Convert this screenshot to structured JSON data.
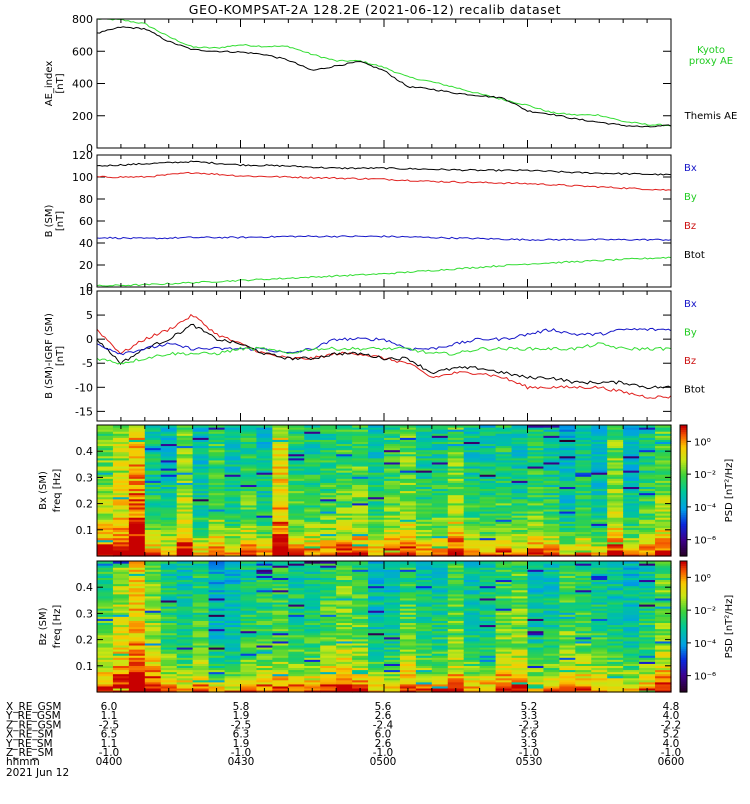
{
  "title": "GEO-KOMPSAT-2A 128.2E (2021-06-12) recalib dataset",
  "colors": {
    "black": "#000000",
    "red": "#e0201e",
    "green": "#33dd33",
    "blue": "#1515c8",
    "legend_blue": "#1515c8",
    "legend_green": "#22cc22",
    "legend_red": "#cc1111"
  },
  "time_axis": {
    "start": "04:00",
    "end": "06:00",
    "tick_labels": [
      "0400",
      "0430",
      "0500",
      "0530",
      "0600"
    ]
  },
  "chart_data": [
    {
      "type": "line",
      "panel": "ae",
      "ylabel": [
        "AE_index",
        "[nT]"
      ],
      "ylim": [
        0,
        800
      ],
      "yticks": [
        0,
        200,
        400,
        600,
        800
      ],
      "series": [
        {
          "name": "Kyoto proxy AE",
          "color": "green",
          "x": [
            "04:00",
            "04:05",
            "04:10",
            "04:15",
            "04:20",
            "04:25",
            "04:30",
            "04:35",
            "04:40",
            "04:45",
            "04:50",
            "04:55",
            "05:00",
            "05:05",
            "05:10",
            "05:15",
            "05:20",
            "05:25",
            "05:30",
            "05:35",
            "05:40",
            "05:45",
            "05:50",
            "05:55",
            "06:00"
          ],
          "values": [
            800,
            795,
            770,
            690,
            625,
            620,
            640,
            630,
            630,
            580,
            540,
            540,
            500,
            440,
            410,
            375,
            335,
            300,
            265,
            220,
            205,
            205,
            165,
            145,
            140
          ]
        },
        {
          "name": "Themis AE",
          "color": "black",
          "x": [
            "04:00",
            "04:05",
            "04:10",
            "04:15",
            "04:20",
            "04:25",
            "04:30",
            "04:35",
            "04:40",
            "04:45",
            "04:50",
            "04:55",
            "05:00",
            "05:05",
            "05:10",
            "05:15",
            "05:20",
            "05:25",
            "05:30",
            "05:35",
            "05:40",
            "05:45",
            "05:50",
            "05:55",
            "06:00"
          ],
          "values": [
            710,
            750,
            740,
            660,
            610,
            600,
            595,
            580,
            545,
            480,
            510,
            535,
            480,
            380,
            365,
            340,
            325,
            310,
            230,
            210,
            180,
            160,
            140,
            130,
            140
          ]
        }
      ],
      "legend": [
        {
          "text": [
            "Kyoto",
            "proxy AE"
          ],
          "color": "legend_green"
        },
        {
          "text": [
            "Themis AE"
          ],
          "color": "black"
        }
      ]
    },
    {
      "type": "line",
      "panel": "bsm",
      "ylabel": [
        "B (SM)",
        "[nT]"
      ],
      "ylim": [
        0,
        120
      ],
      "yticks": [
        0,
        20,
        40,
        60,
        80,
        100,
        120
      ],
      "series": [
        {
          "color": "black",
          "x": [
            "04:00",
            "04:10",
            "04:20",
            "04:30",
            "04:40",
            "04:50",
            "05:00",
            "05:10",
            "05:20",
            "05:30",
            "05:40",
            "05:50",
            "06:00"
          ],
          "values": [
            110,
            112,
            114,
            111,
            110,
            108,
            108,
            107,
            106,
            106,
            104,
            103,
            102
          ]
        },
        {
          "color": "red",
          "x": [
            "04:00",
            "04:10",
            "04:20",
            "04:30",
            "04:40",
            "04:50",
            "05:00",
            "05:10",
            "05:20",
            "05:30",
            "05:40",
            "05:50",
            "06:00"
          ],
          "values": [
            100,
            100,
            104,
            101,
            100,
            99,
            98,
            96,
            95,
            94,
            92,
            90,
            88
          ]
        },
        {
          "color": "blue",
          "x": [
            "04:00",
            "04:10",
            "04:20",
            "04:30",
            "04:40",
            "04:50",
            "05:00",
            "05:10",
            "05:20",
            "05:30",
            "05:40",
            "05:50",
            "06:00"
          ],
          "values": [
            45,
            44,
            45,
            45,
            46,
            46,
            46,
            45,
            44,
            43,
            43,
            43,
            43
          ]
        },
        {
          "color": "green",
          "x": [
            "04:00",
            "04:10",
            "04:20",
            "04:30",
            "04:40",
            "04:50",
            "05:00",
            "05:10",
            "05:20",
            "05:30",
            "05:40",
            "05:50",
            "06:00"
          ],
          "values": [
            1,
            2,
            4,
            6,
            8,
            10,
            12,
            15,
            18,
            21,
            23,
            25,
            27
          ]
        }
      ],
      "legend": [
        {
          "text": [
            "Bx"
          ],
          "color": "legend_blue"
        },
        {
          "text": [
            "By"
          ],
          "color": "legend_green"
        },
        {
          "text": [
            "Bz"
          ],
          "color": "legend_red"
        },
        {
          "text": [
            "Btot"
          ],
          "color": "black"
        }
      ]
    },
    {
      "type": "line",
      "panel": "digrf",
      "ylabel": [
        "B (SM)-IGRF (SM)",
        "[nT]"
      ],
      "ylim": [
        -17,
        10
      ],
      "yticks": [
        -15,
        -10,
        -5,
        0,
        5,
        10
      ],
      "series": [
        {
          "color": "red",
          "x": [
            "04:00",
            "04:05",
            "04:10",
            "04:15",
            "04:20",
            "04:25",
            "04:30",
            "04:35",
            "04:40",
            "04:45",
            "04:50",
            "04:55",
            "05:00",
            "05:05",
            "05:10",
            "05:15",
            "05:20",
            "05:25",
            "05:30",
            "05:35",
            "05:40",
            "05:45",
            "05:50",
            "05:55",
            "06:00"
          ],
          "values": [
            2,
            -3,
            0,
            2,
            5,
            1,
            -1,
            -3,
            -4,
            -4,
            -3,
            -3,
            -4,
            -5,
            -8,
            -7,
            -7,
            -8,
            -10,
            -10,
            -10,
            -10,
            -11,
            -12,
            -12
          ]
        },
        {
          "color": "black",
          "x": [
            "04:00",
            "04:05",
            "04:10",
            "04:15",
            "04:20",
            "04:25",
            "04:30",
            "04:35",
            "04:40",
            "04:45",
            "04:50",
            "04:55",
            "05:00",
            "05:05",
            "05:10",
            "05:15",
            "05:20",
            "05:25",
            "05:30",
            "05:35",
            "05:40",
            "05:45",
            "05:50",
            "05:55",
            "06:00"
          ],
          "values": [
            0,
            -5,
            -2,
            0,
            3,
            0,
            -1,
            -3,
            -4,
            -4,
            -3,
            -3,
            -4,
            -4,
            -7,
            -6,
            -6,
            -7,
            -8,
            -8,
            -9,
            -9,
            -9,
            -10,
            -10
          ]
        },
        {
          "color": "blue",
          "x": [
            "04:00",
            "04:05",
            "04:10",
            "04:15",
            "04:20",
            "04:25",
            "04:30",
            "04:35",
            "04:40",
            "04:45",
            "04:50",
            "04:55",
            "05:00",
            "05:05",
            "05:10",
            "05:15",
            "05:20",
            "05:25",
            "05:30",
            "05:35",
            "05:40",
            "05:45",
            "05:50",
            "05:55",
            "06:00"
          ],
          "values": [
            -1,
            -3,
            -2,
            -1,
            -2,
            -2,
            -2,
            -2,
            -3,
            -2,
            0,
            0,
            0,
            -2,
            -2,
            -1,
            0,
            0,
            1,
            2,
            1,
            1,
            2,
            2,
            2
          ]
        },
        {
          "color": "green",
          "x": [
            "04:00",
            "04:05",
            "04:10",
            "04:15",
            "04:20",
            "04:25",
            "04:30",
            "04:35",
            "04:40",
            "04:45",
            "04:50",
            "04:55",
            "05:00",
            "05:05",
            "05:10",
            "05:15",
            "05:20",
            "05:25",
            "05:30",
            "05:35",
            "05:40",
            "05:45",
            "05:50",
            "05:55",
            "06:00"
          ],
          "values": [
            -4,
            -5,
            -4,
            -3,
            -3,
            -3,
            -2,
            -2,
            -3,
            -2,
            -2,
            -2,
            -2,
            -2,
            -3,
            -3,
            -2,
            -2,
            -2,
            -2,
            -2,
            -1,
            -2,
            -2,
            -2
          ]
        }
      ],
      "legend": [
        {
          "text": [
            "Bx"
          ],
          "color": "legend_blue"
        },
        {
          "text": [
            "By"
          ],
          "color": "legend_green"
        },
        {
          "text": [
            "Bz"
          ],
          "color": "legend_red"
        },
        {
          "text": [
            "Btot"
          ],
          "color": "black"
        }
      ]
    },
    {
      "type": "heatmap",
      "panel": "spec_bx",
      "ylabel": [
        "Bx (SM)",
        "freq [Hz]"
      ],
      "ylim": [
        0,
        0.5
      ],
      "yticks": [
        0.1,
        0.2,
        0.3,
        0.4
      ],
      "colorbar_label": "PSD [nT²/Hz]",
      "colorbar_ticks": [
        "10⁰",
        "10⁻²",
        "10⁻⁴",
        "10⁻⁶"
      ],
      "colorbar_scale": "log",
      "colorbar_range": [
        -7,
        1
      ]
    },
    {
      "type": "heatmap",
      "panel": "spec_bz",
      "ylabel": [
        "Bz (SM)",
        "freq [Hz]"
      ],
      "ylim": [
        0,
        0.5
      ],
      "yticks": [
        0.1,
        0.2,
        0.3,
        0.4
      ],
      "colorbar_label": "PSD [nT²/Hz]",
      "colorbar_ticks": [
        "10⁰",
        "10⁻²",
        "10⁻⁴",
        "10⁻⁶"
      ],
      "colorbar_scale": "log",
      "colorbar_range": [
        -7,
        1
      ]
    }
  ],
  "ephemeris": {
    "rows": [
      {
        "label": "X_RE_GSM",
        "values": [
          "6.0",
          "5.8",
          "5.6",
          "5.2",
          "4.8"
        ]
      },
      {
        "label": "Y_RE_GSM",
        "values": [
          "1.1",
          "1.9",
          "2.6",
          "3.3",
          "4.0"
        ]
      },
      {
        "label": "Z_RE_GSM",
        "values": [
          "-2.5",
          "-2.5",
          "-2.4",
          "-2.3",
          "-2.2"
        ]
      },
      {
        "label": "X_RE_SM",
        "values": [
          "6.5",
          "6.3",
          "6.0",
          "5.6",
          "5.2"
        ]
      },
      {
        "label": "Y_RE_SM",
        "values": [
          "1.1",
          "1.9",
          "2.6",
          "3.3",
          "4.0"
        ]
      },
      {
        "label": "Z_RE_SM",
        "values": [
          "-1.0",
          "-1.0",
          "-1.0",
          "-1.0",
          "-1.0"
        ]
      },
      {
        "label": "hhmm",
        "values": [
          "0400",
          "0430",
          "0500",
          "0530",
          "0600"
        ]
      }
    ],
    "date": "2021 Jun 12"
  }
}
